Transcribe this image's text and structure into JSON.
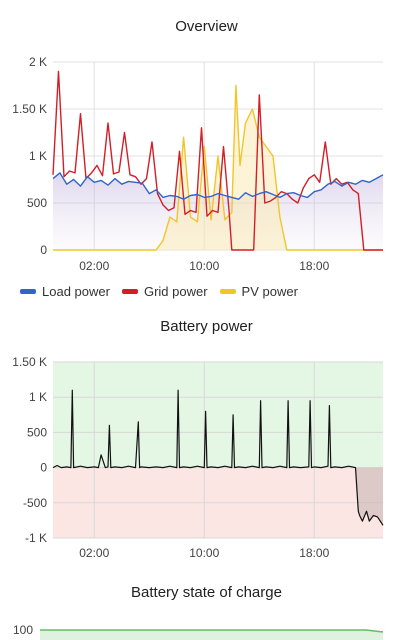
{
  "colors": {
    "load": "#3066c9",
    "grid": "#d21f27",
    "pv": "#f2c52a",
    "battery": "#111111",
    "pos_bg": "#e3f7e4",
    "neg_bg": "#fbe6e4",
    "soc": "#66bb6a"
  },
  "overview": {
    "title": "Overview",
    "legend": [
      {
        "key": "load",
        "label": "Load power"
      },
      {
        "key": "grid",
        "label": "Grid power"
      },
      {
        "key": "pv",
        "label": "PV power"
      }
    ]
  },
  "battery_power": {
    "title": "Battery power"
  },
  "battery_soc": {
    "title": "Battery state of charge"
  },
  "chart_data": [
    {
      "type": "line",
      "title": "Overview",
      "x_ticks": [
        "02:00",
        "10:00",
        "18:00"
      ],
      "y_ticks": [
        "0",
        "500",
        "1 K",
        "1.50 K",
        "2 K"
      ],
      "ylim": [
        0,
        2000
      ],
      "x_unit": "hours since 23:00",
      "grid": true,
      "legend": "bottom",
      "series": [
        {
          "name": "Load power",
          "color": "#3066c9",
          "x": [
            0,
            0.5,
            1,
            1.5,
            2,
            2.5,
            3,
            3.5,
            4,
            4.5,
            5,
            5.5,
            6,
            6.5,
            7,
            7.5,
            8,
            8.5,
            9,
            9.5,
            10,
            10.5,
            11,
            11.5,
            12,
            12.5,
            13,
            13.5,
            14,
            14.5,
            15,
            15.5,
            16,
            16.5,
            17,
            17.5,
            18,
            18.5,
            19,
            19.5,
            20,
            20.5,
            21,
            21.5,
            22,
            22.5,
            23,
            23.5,
            24
          ],
          "y": [
            760,
            820,
            700,
            750,
            680,
            780,
            720,
            740,
            690,
            760,
            700,
            730,
            720,
            710,
            600,
            640,
            560,
            580,
            570,
            540,
            580,
            590,
            560,
            570,
            600,
            580,
            560,
            540,
            610,
            570,
            600,
            620,
            590,
            560,
            600,
            610,
            580,
            560,
            620,
            640,
            700,
            730,
            680,
            720,
            700,
            740,
            720,
            760,
            800
          ]
        },
        {
          "name": "Grid power",
          "color": "#d21f27",
          "x": [
            0,
            0.4,
            0.8,
            1.2,
            1.6,
            2,
            2.4,
            2.8,
            3.2,
            3.6,
            4,
            4.4,
            4.8,
            5.2,
            5.6,
            6,
            6.4,
            6.8,
            7.2,
            7.6,
            8,
            8.4,
            8.8,
            9.2,
            9.6,
            10,
            10.4,
            10.8,
            11.2,
            11.6,
            12,
            12.4,
            12.8,
            13,
            13.4,
            13.8,
            14.2,
            14.6,
            15,
            15.4,
            15.8,
            16.2,
            16.6,
            17,
            17.4,
            17.8,
            18.2,
            18.6,
            19,
            19.4,
            19.8,
            20.2,
            20.6,
            21,
            21.4,
            21.8,
            22.2,
            22.6,
            23,
            23.4,
            23.8,
            24
          ],
          "y": [
            800,
            1900,
            780,
            840,
            820,
            1450,
            760,
            820,
            900,
            790,
            1350,
            810,
            830,
            1250,
            800,
            780,
            700,
            760,
            1150,
            600,
            480,
            420,
            450,
            1050,
            380,
            420,
            400,
            1300,
            360,
            420,
            400,
            1100,
            420,
            0,
            0,
            0,
            0,
            0,
            1650,
            500,
            520,
            560,
            620,
            600,
            540,
            500,
            660,
            760,
            800,
            720,
            1150,
            700,
            760,
            700,
            720,
            640,
            600,
            0,
            0,
            0,
            0,
            0
          ]
        },
        {
          "name": "PV power",
          "color": "#f2c52a",
          "x": [
            0,
            5,
            7.5,
            8,
            8.5,
            9,
            9.5,
            10,
            10.5,
            11,
            11.5,
            12,
            12.5,
            13,
            13.3,
            13.6,
            14,
            14.5,
            15,
            15.5,
            16,
            16.5,
            17,
            17.5,
            18,
            24
          ],
          "y": [
            0,
            0,
            0,
            100,
            350,
            300,
            1200,
            350,
            300,
            1100,
            320,
            1000,
            320,
            400,
            1750,
            900,
            1350,
            1500,
            1200,
            1100,
            1000,
            350,
            0,
            0,
            0,
            0
          ]
        }
      ]
    },
    {
      "type": "line",
      "title": "Battery power",
      "x_ticks": [
        "02:00",
        "10:00",
        "18:00"
      ],
      "y_ticks": [
        "-1 K",
        "-500",
        "0",
        "500",
        "1 K",
        "1.50 K"
      ],
      "ylim": [
        -1000,
        1500
      ],
      "x_unit": "hours since 23:00",
      "grid": true,
      "series": [
        {
          "name": "Battery power",
          "color": "#111111",
          "x": [
            0,
            0.3,
            0.6,
            1,
            1.3,
            1.4,
            1.5,
            2,
            2.5,
            3,
            3.3,
            3.5,
            3.8,
            4,
            4.1,
            4.2,
            4.5,
            5,
            5.5,
            6,
            6.2,
            6.3,
            6.4,
            7,
            7.5,
            8,
            8.5,
            9,
            9.1,
            9.2,
            9.5,
            10,
            10.5,
            11,
            11.1,
            11.2,
            11.5,
            12,
            12.5,
            13,
            13.1,
            13.2,
            13.5,
            14,
            14.5,
            15,
            15.1,
            15.2,
            15.5,
            16,
            16.5,
            17,
            17.1,
            17.2,
            17.5,
            18,
            18.6,
            18.7,
            18.8,
            19,
            19.5,
            20,
            20.1,
            20.2,
            20.5,
            21,
            21.5,
            22,
            22.2,
            22.3,
            22.5,
            22.8,
            23,
            23.3,
            23.6,
            24
          ],
          "y": [
            0,
            30,
            0,
            10,
            0,
            1100,
            0,
            20,
            0,
            10,
            0,
            180,
            0,
            10,
            600,
            0,
            10,
            0,
            20,
            0,
            650,
            0,
            10,
            0,
            10,
            0,
            20,
            0,
            1100,
            0,
            10,
            0,
            20,
            0,
            800,
            0,
            10,
            0,
            20,
            0,
            750,
            0,
            10,
            0,
            20,
            0,
            950,
            0,
            10,
            0,
            20,
            0,
            950,
            0,
            10,
            0,
            10,
            950,
            0,
            10,
            0,
            20,
            880,
            0,
            10,
            0,
            20,
            0,
            -620,
            -680,
            -760,
            -620,
            -760,
            -680,
            -700,
            -820
          ]
        }
      ]
    },
    {
      "type": "area",
      "title": "Battery state of charge",
      "y_ticks": [
        "100"
      ],
      "series": [
        {
          "name": "Battery state of charge",
          "color": "#66bb6a",
          "x": [
            0,
            22.8,
            24
          ],
          "y": [
            100,
            100,
            95
          ]
        }
      ]
    }
  ]
}
